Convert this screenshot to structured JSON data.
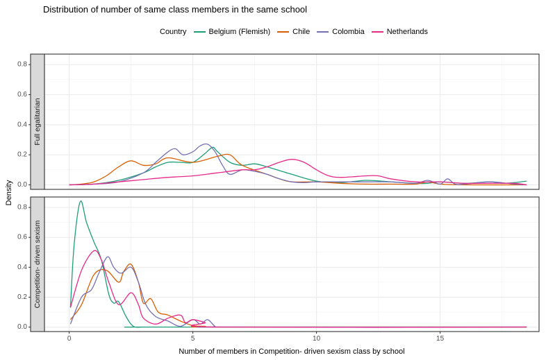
{
  "chart_data": {
    "type": "area",
    "title": "Distribution of number of same class members in the same school",
    "legend": {
      "title": "Country",
      "position": "top"
    },
    "xlabel": "Number of members in Competition- driven sexism class by school",
    "ylabel": "Density",
    "xlim": [
      -1,
      19
    ],
    "ylim": [
      -0.03,
      0.87
    ],
    "x_ticks": [
      0,
      5,
      10,
      15
    ],
    "y_ticks": [
      0.0,
      0.2,
      0.4,
      0.6,
      0.8
    ],
    "grid": true,
    "series_names": [
      "Belgium (Flemish)",
      "Chile",
      "Colombia",
      "Netherlands"
    ],
    "colors": {
      "Belgium (Flemish)": "#1b9e77",
      "Chile": "#d95f02",
      "Colombia": "#7570b3",
      "Netherlands": "#e7298a"
    },
    "panels": [
      {
        "strip_label": "Full egalitarian",
        "series": [
          {
            "name": "Belgium (Flemish)",
            "x": [
              0,
              1,
              2,
              3,
              3.5,
              4,
              4.5,
              5,
              5.5,
              5.8,
              6,
              6.5,
              7,
              7.5,
              8,
              9,
              10,
              11,
              12,
              13,
              14,
              14.5,
              15,
              16,
              17,
              17.5,
              18,
              18.5
            ],
            "y": [
              0,
              0.005,
              0.03,
              0.08,
              0.12,
              0.15,
              0.15,
              0.15,
              0.21,
              0.25,
              0.22,
              0.15,
              0.13,
              0.14,
              0.12,
              0.07,
              0.025,
              0.015,
              0.03,
              0.02,
              0.01,
              0.01,
              0.02,
              0.01,
              0.02,
              0.01,
              0.015,
              0.025
            ]
          },
          {
            "name": "Chile",
            "x": [
              0,
              0.5,
              1,
              1.5,
              2,
              2.5,
              3,
              3.5,
              4,
              5,
              6,
              6.5,
              7,
              8,
              8.5,
              9,
              10,
              11,
              12,
              13,
              14,
              14.5,
              15,
              16,
              18.5
            ],
            "y": [
              0,
              0.005,
              0.02,
              0.06,
              0.12,
              0.16,
              0.13,
              0.14,
              0.18,
              0.15,
              0.19,
              0.2,
              0.13,
              0.07,
              0.04,
              0.02,
              0.02,
              0.01,
              0.005,
              0.005,
              0.005,
              0.02,
              0.005,
              0.0,
              0.0
            ]
          },
          {
            "name": "Colombia",
            "x": [
              0,
              1,
              2,
              3,
              3.5,
              4,
              4.3,
              4.6,
              5,
              5.3,
              5.6,
              5.9,
              6.2,
              6.5,
              7,
              7.5,
              8,
              8.5,
              9,
              9.5,
              10,
              11,
              12,
              13,
              14,
              14.5,
              15,
              15.3,
              15.6,
              16,
              17,
              18,
              18.5
            ],
            "y": [
              0,
              0.005,
              0.02,
              0.08,
              0.15,
              0.22,
              0.24,
              0.2,
              0.22,
              0.26,
              0.27,
              0.22,
              0.13,
              0.07,
              0.1,
              0.09,
              0.07,
              0.04,
              0.02,
              0.015,
              0.02,
              0.02,
              0.02,
              0.02,
              0.01,
              0.03,
              0.005,
              0.04,
              0.005,
              0.005,
              0.02,
              0.005,
              0.0
            ]
          },
          {
            "name": "Netherlands",
            "x": [
              0,
              1,
              2,
              3,
              4,
              5,
              6,
              7,
              7.5,
              8,
              8.5,
              9,
              9.5,
              10,
              10.5,
              11,
              12,
              12.5,
              13,
              14,
              15,
              16,
              17,
              18,
              18.5
            ],
            "y": [
              0,
              0.005,
              0.02,
              0.035,
              0.05,
              0.06,
              0.08,
              0.1,
              0.1,
              0.12,
              0.15,
              0.17,
              0.15,
              0.1,
              0.06,
              0.05,
              0.06,
              0.06,
              0.04,
              0.02,
              0.02,
              0.01,
              0.01,
              0.01,
              0.0
            ]
          }
        ]
      },
      {
        "strip_label": "Competition- driven sexism",
        "series": [
          {
            "name": "Belgium (Flemish)",
            "x": [
              0.05,
              0.2,
              0.45,
              0.7,
              1.0,
              1.3,
              1.6,
              1.8,
              2.0,
              2.3,
              2.6,
              3.0,
              3.5,
              18.5
            ],
            "y": [
              0.13,
              0.55,
              0.84,
              0.7,
              0.57,
              0.45,
              0.22,
              0.16,
              0.17,
              0.07,
              0.005,
              0.0,
              0.0,
              0.0
            ]
          },
          {
            "name": "Chile",
            "x": [
              0.05,
              0.5,
              1.0,
              1.5,
              2.0,
              2.2,
              2.5,
              2.8,
              3.0,
              3.3,
              3.6,
              4.0,
              4.5,
              5.0,
              5.5,
              6.0,
              18.5
            ],
            "y": [
              0.05,
              0.15,
              0.35,
              0.38,
              0.3,
              0.37,
              0.42,
              0.3,
              0.16,
              0.19,
              0.1,
              0.08,
              0.04,
              0.01,
              0.005,
              0.0,
              0.0
            ]
          },
          {
            "name": "Colombia",
            "x": [
              0.05,
              0.5,
              0.9,
              1.2,
              1.55,
              1.8,
              2.1,
              2.5,
              2.8,
              3.1,
              3.5,
              4.0,
              4.5,
              5.0,
              5.3,
              5.6,
              5.9,
              6.2,
              18.5
            ],
            "y": [
              0.02,
              0.2,
              0.25,
              0.36,
              0.47,
              0.4,
              0.36,
              0.4,
              0.3,
              0.15,
              0.07,
              0.04,
              0.005,
              0.05,
              0.02,
              0.05,
              0.005,
              0.0,
              0.0
            ]
          },
          {
            "name": "Netherlands",
            "x": [
              0.05,
              0.5,
              1.0,
              1.3,
              1.6,
              2.0,
              2.5,
              2.8,
              3.0,
              3.5,
              4.0,
              4.5,
              4.7,
              5.0,
              5.5,
              6.0,
              18.5
            ],
            "y": [
              0.13,
              0.38,
              0.51,
              0.45,
              0.3,
              0.15,
              0.23,
              0.15,
              0.06,
              0.02,
              0.06,
              0.08,
              0.03,
              0.05,
              0.03,
              0.0,
              0.0
            ]
          }
        ]
      }
    ]
  }
}
